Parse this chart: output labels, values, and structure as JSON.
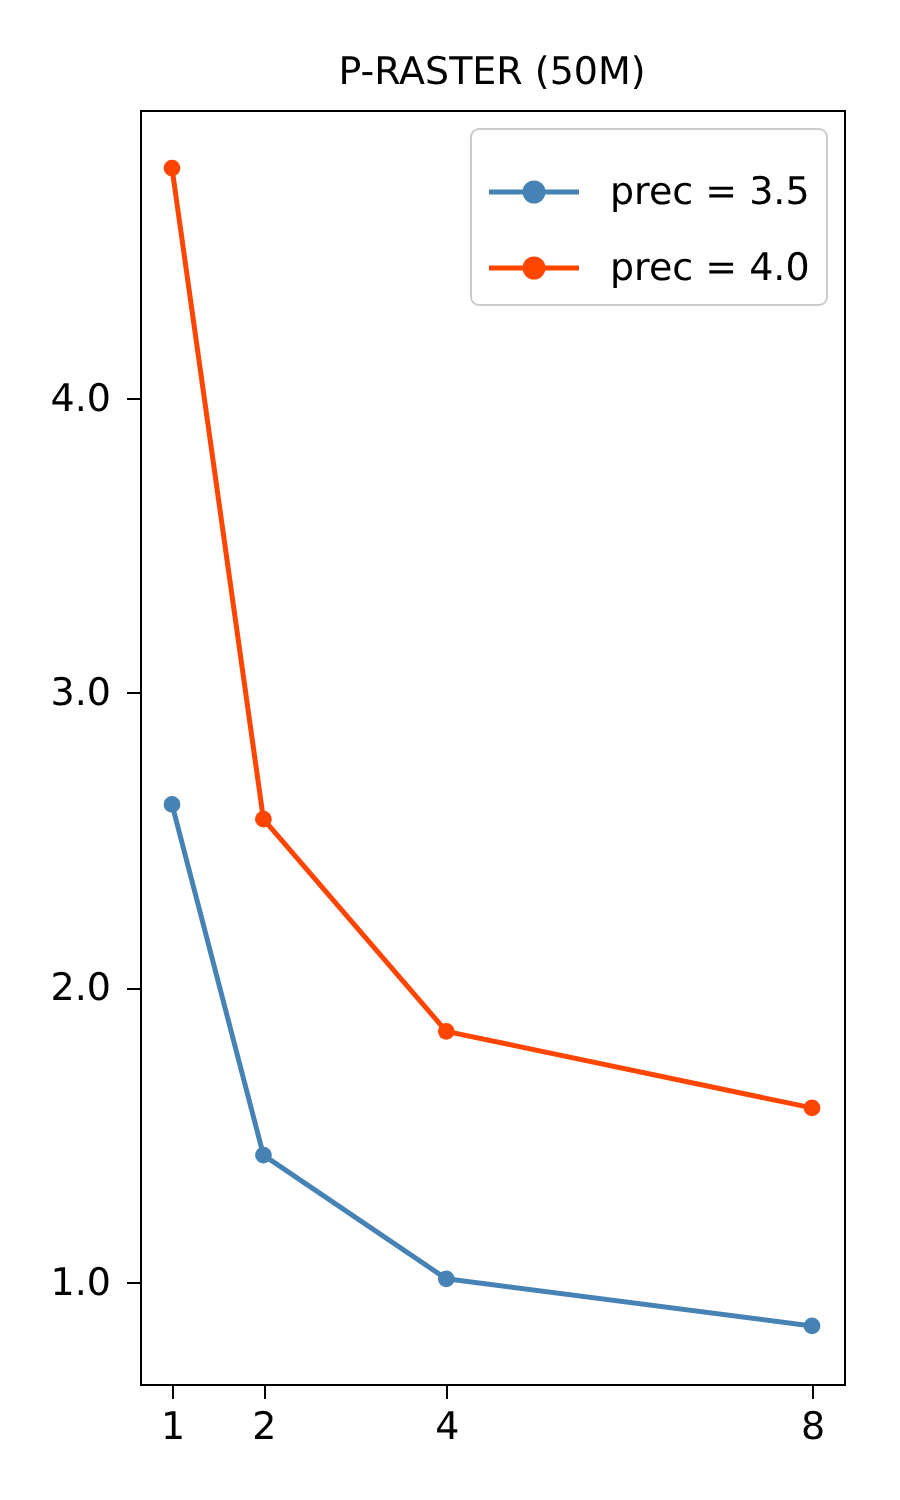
{
  "chart_data": {
    "type": "line",
    "title": "P-RASTER (50M)",
    "x": [
      1,
      2,
      4,
      8
    ],
    "series": [
      {
        "name": "prec = 3.5",
        "color": "#4682b4",
        "values": [
          2.62,
          1.43,
          1.01,
          0.85
        ]
      },
      {
        "name": "prec = 4.0",
        "color": "#ff4500",
        "values": [
          4.78,
          2.57,
          1.85,
          1.59
        ]
      }
    ],
    "xlim": [
      0.65,
      8.35
    ],
    "xticks": [
      1,
      2,
      4,
      8
    ],
    "ylim": [
      0.653,
      4.977
    ],
    "yticks": [
      {
        "value": 1,
        "label": "1.0"
      },
      {
        "value": 2,
        "label": "2.0"
      },
      {
        "value": 3,
        "label": "3.0"
      },
      {
        "value": 4,
        "label": "4.0"
      }
    ],
    "legend": "top right",
    "marker": "circle",
    "line_style": "solid"
  }
}
